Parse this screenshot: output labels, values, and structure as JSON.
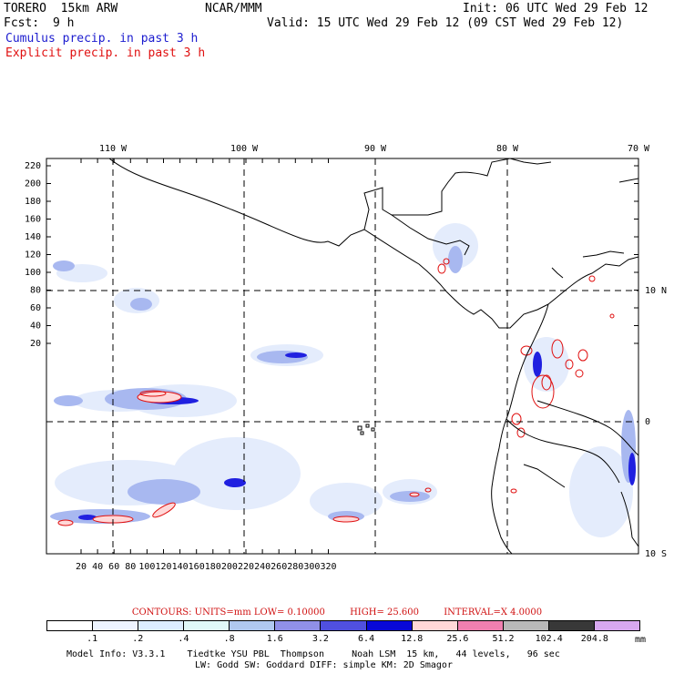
{
  "header": {
    "model": "TORERO  15km ARW",
    "org": "NCAR/MMM",
    "init": "Init: 06 UTC Wed 29 Feb 12",
    "fcst_label": "Fcst:",
    "fcst_value": "9 h",
    "valid": "Valid: 15 UTC Wed 29 Feb 12 (09 CST Wed 29 Feb 12)",
    "legend_cumulus": "Cumulus precip. in past 3 h",
    "legend_explicit": "Explicit precip. in past 3 h"
  },
  "map": {
    "lon_labels": [
      "110 W",
      "100 W",
      "90 W",
      "80 W",
      "70 W"
    ],
    "lat_labels": [
      "10 N",
      "0",
      "10 S"
    ],
    "y_ticks": [
      "220",
      "200",
      "180",
      "160",
      "140",
      "120",
      "100",
      "80",
      "60",
      "40",
      "20"
    ],
    "x_ticks": [
      "20",
      "40",
      "60",
      "80",
      "100",
      "120",
      "140",
      "160",
      "180",
      "200",
      "220",
      "240",
      "260",
      "280",
      "300",
      "320"
    ],
    "colors": {
      "land_line": "#000000",
      "explicit_contour": "#e01010",
      "cumulus_fill": "#4f4fe8"
    }
  },
  "contours": {
    "units": "CONTOURS:  UNITS=mm  LOW= 0.10000",
    "high": "HIGH=  25.600",
    "interval": "INTERVAL=X  4.0000"
  },
  "colorbar": {
    "colors": [
      "#ffffff",
      "#eef4ff",
      "#ddeeff",
      "#e0f8f8",
      "#b0c8f0",
      "#9090e8",
      "#5050e0",
      "#0808d8",
      "#ffd8d8",
      "#f080b0",
      "#b8b8b8",
      "#383838",
      "#d8a8f0"
    ],
    "labels": [
      ".1",
      ".2",
      ".4",
      ".8",
      "1.6",
      "3.2",
      "6.4",
      "12.8",
      "25.6",
      "51.2",
      "102.4",
      "204.8"
    ],
    "unit": "mm"
  },
  "footer": {
    "line1": "Model Info: V3.3.1    Tiedtke YSU PBL  Thompson     Noah LSM  15 km,   44 levels,   96 sec",
    "line2": "LW: Godd SW: Goddard DIFF: simple KM: 2D Smagor"
  }
}
